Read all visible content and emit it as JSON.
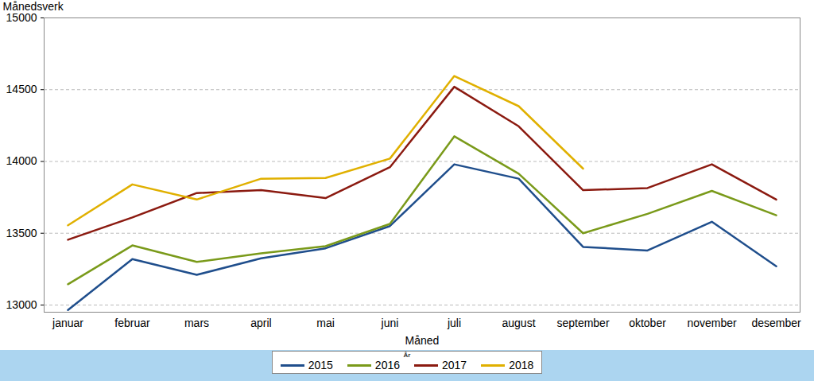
{
  "chart_data": {
    "type": "line",
    "y_label": "Månedsverk",
    "x_label": "Måned",
    "legend_title": "År",
    "categories": [
      "januar",
      "februar",
      "mars",
      "april",
      "mai",
      "juni",
      "juli",
      "august",
      "september",
      "oktober",
      "november",
      "desember"
    ],
    "series": [
      {
        "name": "2015",
        "color": "#1f4e8c",
        "values": [
          12965,
          13320,
          13210,
          13325,
          13395,
          13550,
          13980,
          13880,
          13405,
          13380,
          13580,
          13270
        ]
      },
      {
        "name": "2016",
        "color": "#7a9a1a",
        "values": [
          13145,
          13415,
          13300,
          13360,
          13410,
          13565,
          14175,
          13915,
          13500,
          13635,
          13795,
          13625
        ]
      },
      {
        "name": "2017",
        "color": "#8b1a10",
        "values": [
          13455,
          13610,
          13780,
          13800,
          13745,
          13960,
          14520,
          14245,
          13800,
          13815,
          13980,
          13735
        ]
      },
      {
        "name": "2018",
        "color": "#e0b000",
        "values": [
          13555,
          13840,
          13735,
          13880,
          13885,
          14020,
          14595,
          14385,
          13950,
          null,
          null,
          null
        ]
      }
    ],
    "ylim": [
      12950,
      15000
    ],
    "yticks": [
      13000,
      13500,
      14000,
      14500,
      15000
    ],
    "grid": true,
    "legend": "bottom"
  }
}
